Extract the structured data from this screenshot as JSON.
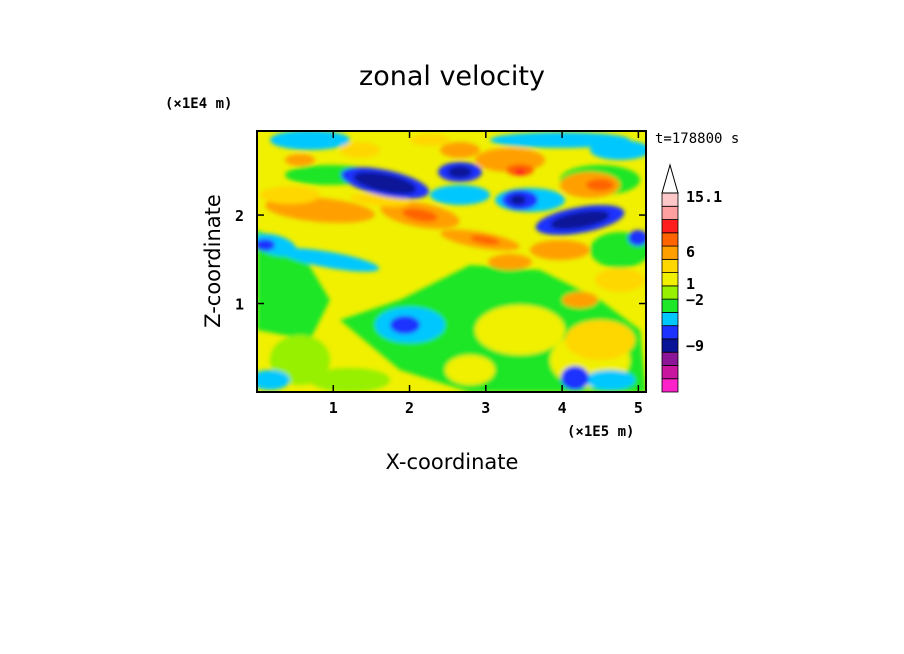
{
  "chart_data": {
    "type": "heatmap",
    "title": "zonal velocity",
    "xlabel": "X-coordinate",
    "ylabel": "Z-coordinate",
    "x_unit": "(×1E5 m)",
    "y_unit": "(×1E4 m)",
    "time_label": "t=178800 s",
    "xlim": [
      0.0,
      5.1
    ],
    "ylim": [
      0.0,
      2.95
    ],
    "x_ticks": [
      1,
      2,
      3,
      4,
      5
    ],
    "y_ticks": [
      1,
      2
    ],
    "colorbar": {
      "labels": [
        {
          "text": "15.1",
          "value": 15.1
        },
        {
          "text": "6",
          "value": 6
        },
        {
          "text": "1",
          "value": 1
        },
        {
          "text": "−2",
          "value": -2
        },
        {
          "text": "−9",
          "value": -9
        }
      ],
      "colors": [
        "#ff22c8",
        "#c8169e",
        "#8c1496",
        "#0a1496",
        "#1e32ff",
        "#00c8ff",
        "#1ee628",
        "#96f000",
        "#f0f000",
        "#ffd700",
        "#ffa000",
        "#ff6400",
        "#ff1e1e",
        "#ffa0a0",
        "#ffc8c8",
        "#ffffff"
      ]
    }
  }
}
